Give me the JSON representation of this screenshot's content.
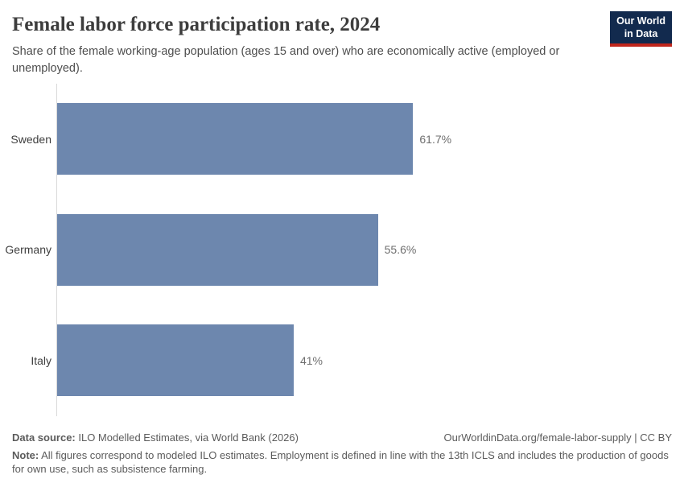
{
  "header": {
    "title": "Female labor force participation rate, 2024",
    "subtitle": "Share of the female working-age population (ages 15 and over) who are economically active (employed or unemployed).",
    "logo": {
      "line1": "Our World",
      "line2": "in Data"
    }
  },
  "chart_data": {
    "type": "bar",
    "orientation": "horizontal",
    "title": "Female labor force participation rate, 2024",
    "subtitle": "Share of the female working-age population (ages 15 and over) who are economically active (employed or unemployed).",
    "categories": [
      "Sweden",
      "Germany",
      "Italy"
    ],
    "values": [
      61.7,
      55.6,
      41
    ],
    "value_labels": [
      "61.7%",
      "55.6%",
      "41%"
    ],
    "unit": "%",
    "xlabel": "",
    "ylabel": "",
    "xlim": [
      0,
      100
    ],
    "grid": false,
    "legend": false,
    "bar_color": "#6d87ae",
    "axis_line_color": "#d9d9d9"
  },
  "footer": {
    "data_source_label": "Data source:",
    "data_source_text": " ILO Modelled Estimates, via World Bank (2026)",
    "link_text": "OurWorldinData.org/female-labor-supply | CC BY",
    "note_label": "Note:",
    "note_text": " All figures correspond to modeled ILO estimates. Employment is defined in line with the 13th ICLS and includes the production of goods for own use, such as subsistence farming."
  },
  "colors": {
    "bar": "#6d87ae",
    "axis_line": "#d9d9d9",
    "title_text": "#3d3d3d",
    "subtitle_text": "#4e4e4e",
    "footer_text": "#5b5b5b",
    "logo_background": "#122a4e",
    "logo_accent_red": "#c0261c"
  }
}
